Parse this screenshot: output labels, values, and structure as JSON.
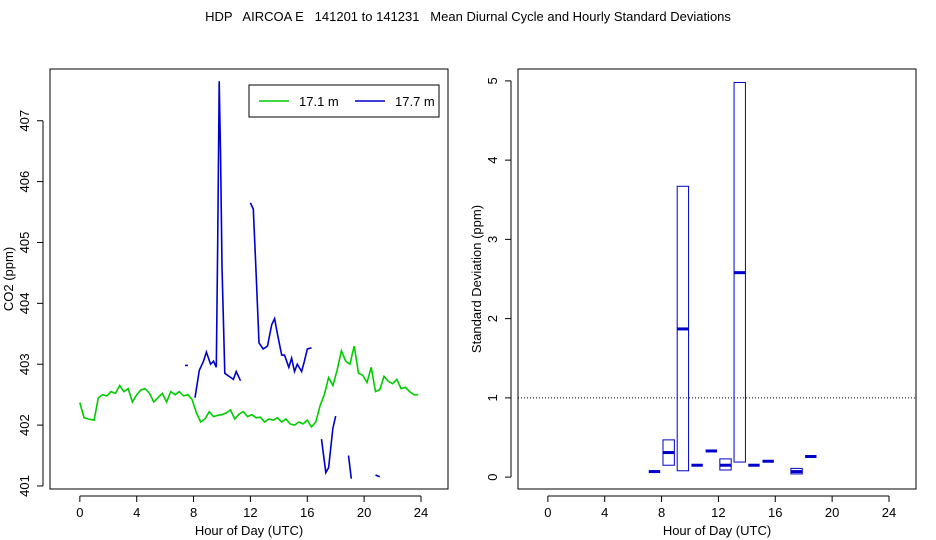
{
  "title": "HDP   AIRCOA E   141201 to 141231   Mean Diurnal Cycle and Hourly Standard Deviations",
  "colors": {
    "green": "#00cc00",
    "blue": "#0000cc"
  },
  "chart_data": [
    {
      "type": "line",
      "xlabel": "Hour of Day (UTC)",
      "ylabel": "CO2 (ppm)",
      "xlim": [
        -2.1,
        25.9
      ],
      "ylim": [
        400.95,
        407.85
      ],
      "xticks": [
        "0",
        "4",
        "8",
        "12",
        "16",
        "20",
        "24"
      ],
      "xtick_values": [
        0,
        4,
        8,
        12,
        16,
        20,
        24
      ],
      "yticks": [
        "401",
        "402",
        "403",
        "404",
        "405",
        "406",
        "407"
      ],
      "ytick_values": [
        401,
        402,
        403,
        404,
        405,
        406,
        407
      ],
      "legend": {
        "position": "top-right",
        "entries": [
          "17.1 m",
          "17.7 m"
        ]
      },
      "series": [
        {
          "name": "17.1 m",
          "color": "green",
          "segments": [
            [
              [
                0,
                402.37
              ],
              [
                0.3,
                402.12
              ],
              [
                0.6,
                402.1
              ],
              [
                1.0,
                402.08
              ],
              [
                1.3,
                402.45
              ],
              [
                1.6,
                402.5
              ],
              [
                1.9,
                402.48
              ],
              [
                2.2,
                402.55
              ],
              [
                2.5,
                402.52
              ],
              [
                2.8,
                402.65
              ],
              [
                3.1,
                402.55
              ],
              [
                3.4,
                402.6
              ],
              [
                3.7,
                402.38
              ],
              [
                4.0,
                402.5
              ],
              [
                4.3,
                402.58
              ],
              [
                4.6,
                402.6
              ],
              [
                4.9,
                402.52
              ],
              [
                5.2,
                402.38
              ],
              [
                5.5,
                402.45
              ],
              [
                5.8,
                402.52
              ],
              [
                6.1,
                402.38
              ],
              [
                6.4,
                402.55
              ],
              [
                6.7,
                402.5
              ],
              [
                7.0,
                402.55
              ],
              [
                7.3,
                402.48
              ],
              [
                7.6,
                402.5
              ],
              [
                7.9,
                402.42
              ],
              [
                8.2,
                402.2
              ],
              [
                8.5,
                402.05
              ],
              [
                8.8,
                402.1
              ],
              [
                9.1,
                402.22
              ],
              [
                9.4,
                402.14
              ],
              [
                9.7,
                402.16
              ],
              [
                10.0,
                402.17
              ],
              [
                10.3,
                402.2
              ],
              [
                10.6,
                402.25
              ],
              [
                10.9,
                402.1
              ],
              [
                11.2,
                402.18
              ],
              [
                11.5,
                402.22
              ],
              [
                11.8,
                402.14
              ],
              [
                12.1,
                402.17
              ],
              [
                12.4,
                402.12
              ],
              [
                12.7,
                402.13
              ],
              [
                13.0,
                402.05
              ],
              [
                13.3,
                402.1
              ],
              [
                13.6,
                402.08
              ],
              [
                13.9,
                402.12
              ],
              [
                14.2,
                402.05
              ],
              [
                14.5,
                402.1
              ],
              [
                14.8,
                402.02
              ],
              [
                15.1,
                402.0
              ],
              [
                15.4,
                402.05
              ],
              [
                15.7,
                402.02
              ],
              [
                16.0,
                402.08
              ],
              [
                16.3,
                401.97
              ],
              [
                16.6,
                402.05
              ],
              [
                16.9,
                402.32
              ],
              [
                17.2,
                402.5
              ],
              [
                17.5,
                402.78
              ],
              [
                17.8,
                402.65
              ],
              [
                18.1,
                402.9
              ],
              [
                18.4,
                403.22
              ],
              [
                18.7,
                403.05
              ],
              [
                19.0,
                403.0
              ],
              [
                19.3,
                403.3
              ],
              [
                19.6,
                402.85
              ],
              [
                19.9,
                402.82
              ],
              [
                20.2,
                402.7
              ],
              [
                20.5,
                402.95
              ],
              [
                20.8,
                402.55
              ],
              [
                21.1,
                402.58
              ],
              [
                21.4,
                402.8
              ],
              [
                21.7,
                402.72
              ],
              [
                22.0,
                402.68
              ],
              [
                22.3,
                402.75
              ],
              [
                22.6,
                402.6
              ],
              [
                22.9,
                402.62
              ],
              [
                23.2,
                402.55
              ],
              [
                23.5,
                402.5
              ],
              [
                23.8,
                402.5
              ]
            ]
          ]
        },
        {
          "name": "17.7 m",
          "color": "blue",
          "segments": [
            [
              [
                7.4,
                402.98
              ],
              [
                7.6,
                402.98
              ]
            ],
            [
              [
                8.1,
                402.45
              ],
              [
                8.4,
                402.9
              ],
              [
                8.7,
                403.05
              ],
              [
                8.9,
                403.2
              ],
              [
                9.2,
                403.0
              ],
              [
                9.4,
                403.05
              ],
              [
                9.6,
                402.95
              ],
              [
                9.7,
                405.0
              ],
              [
                9.8,
                407.65
              ],
              [
                9.9,
                406.4
              ],
              [
                10.0,
                404.6
              ],
              [
                10.2,
                402.85
              ],
              [
                10.5,
                402.8
              ],
              [
                10.8,
                402.75
              ],
              [
                11.0,
                402.88
              ],
              [
                11.3,
                402.73
              ]
            ],
            [
              [
                12.0,
                405.65
              ],
              [
                12.2,
                405.55
              ],
              [
                12.4,
                404.5
              ],
              [
                12.6,
                403.35
              ],
              [
                12.9,
                403.25
              ],
              [
                13.2,
                403.3
              ],
              [
                13.5,
                403.65
              ],
              [
                13.7,
                403.75
              ],
              [
                13.9,
                403.5
              ],
              [
                14.2,
                403.15
              ],
              [
                14.4,
                403.15
              ],
              [
                14.7,
                402.95
              ],
              [
                14.9,
                403.1
              ],
              [
                15.1,
                402.88
              ],
              [
                15.3,
                403.0
              ],
              [
                15.6,
                402.88
              ],
              [
                15.8,
                403.05
              ],
              [
                16.0,
                403.25
              ],
              [
                16.3,
                403.27
              ]
            ],
            [
              [
                17.0,
                401.77
              ],
              [
                17.3,
                401.22
              ],
              [
                17.5,
                401.3
              ],
              [
                17.8,
                401.95
              ],
              [
                18.0,
                402.15
              ]
            ],
            [
              [
                18.9,
                401.5
              ],
              [
                19.1,
                401.12
              ]
            ],
            [
              [
                20.8,
                401.18
              ],
              [
                21.1,
                401.15
              ]
            ]
          ]
        }
      ]
    },
    {
      "type": "box",
      "xlabel": "Hour of Day (UTC)",
      "ylabel": "Standard Deviation (ppm)",
      "xlim": [
        -2.1,
        25.9
      ],
      "ylim": [
        -0.15,
        5.15
      ],
      "xticks": [
        "0",
        "4",
        "8",
        "12",
        "16",
        "20",
        "24"
      ],
      "xtick_values": [
        0,
        4,
        8,
        12,
        16,
        20,
        24
      ],
      "yticks": [
        "0",
        "1",
        "2",
        "3",
        "4",
        "5"
      ],
      "ytick_values": [
        0,
        1,
        2,
        3,
        4,
        5
      ],
      "reference_line": 1,
      "color": "blue",
      "boxes": [
        {
          "hour": 7.5,
          "low": 0.07,
          "mid": 0.07,
          "high": 0.07
        },
        {
          "hour": 8.5,
          "low": 0.15,
          "mid": 0.31,
          "high": 0.47
        },
        {
          "hour": 9.5,
          "low": 0.08,
          "mid": 1.87,
          "high": 3.67
        },
        {
          "hour": 10.5,
          "low": 0.15,
          "mid": 0.15,
          "high": 0.15
        },
        {
          "hour": 11.5,
          "low": 0.33,
          "mid": 0.33,
          "high": 0.33
        },
        {
          "hour": 12.5,
          "low": 0.09,
          "mid": 0.15,
          "high": 0.23
        },
        {
          "hour": 13.5,
          "low": 0.19,
          "mid": 2.58,
          "high": 4.98
        },
        {
          "hour": 14.5,
          "low": 0.15,
          "mid": 0.15,
          "high": 0.15
        },
        {
          "hour": 15.5,
          "low": 0.2,
          "mid": 0.2,
          "high": 0.2
        },
        {
          "hour": 17.5,
          "low": 0.04,
          "mid": 0.07,
          "high": 0.11
        },
        {
          "hour": 18.5,
          "low": 0.26,
          "mid": 0.26,
          "high": 0.26
        }
      ]
    }
  ]
}
